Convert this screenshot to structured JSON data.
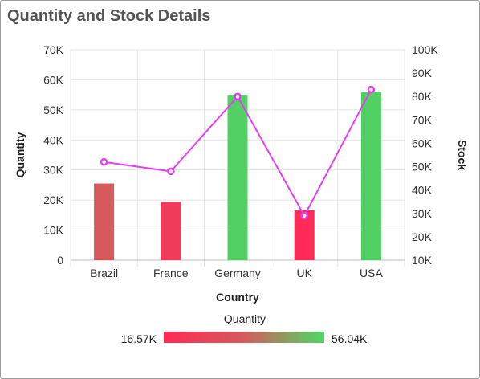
{
  "title": "Quantity and Stock Details",
  "chart_data": {
    "type": "bar",
    "categories": [
      "Brazil",
      "France",
      "Germany",
      "UK",
      "USA"
    ],
    "xlabel": "Country",
    "ylabel": "Quantity",
    "y2label": "Stock",
    "ylim": [
      0,
      70000
    ],
    "y2lim": [
      10000,
      100000
    ],
    "yticks": [
      "0",
      "10K",
      "20K",
      "30K",
      "40K",
      "50K",
      "60K",
      "70K"
    ],
    "y2ticks": [
      "10K",
      "20K",
      "30K",
      "40K",
      "50K",
      "60K",
      "70K",
      "80K",
      "90K",
      "100K"
    ],
    "grid": true,
    "series": [
      {
        "name": "Quantity",
        "type": "bar",
        "axis": "left",
        "values": [
          25500,
          19400,
          55000,
          16570,
          56040
        ]
      },
      {
        "type": "line",
        "axis": "right",
        "values": [
          52000,
          48000,
          80000,
          29000,
          83000
        ]
      }
    ],
    "colors": {
      "bars": [
        "#d55a5c",
        "#f23a5a",
        "#52d064",
        "#ff2a55",
        "#52d064"
      ],
      "line": "#e43ff5",
      "gradient_low": "#ff2a55",
      "gradient_high": "#4cd964"
    },
    "legend": {
      "title": "Quantity",
      "min_label": "16.57K",
      "max_label": "56.04K",
      "placement": "bottom"
    }
  }
}
